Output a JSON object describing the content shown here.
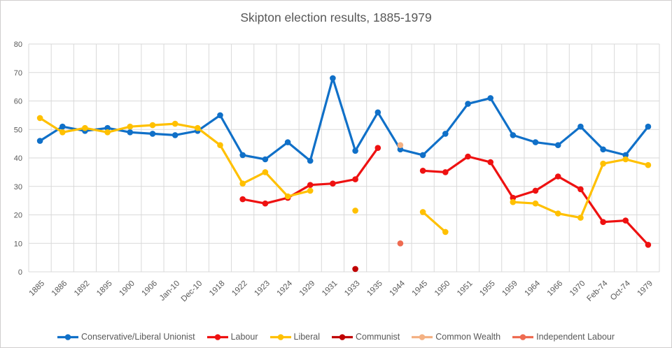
{
  "chart": {
    "title": "Skipton election results, 1885-1979",
    "background": "#ffffff",
    "grid_color": "#d9d9d9",
    "text_color": "#595959"
  },
  "chart_data": {
    "type": "line",
    "title": "Skipton election results, 1885-1979",
    "xlabel": "",
    "ylabel": "",
    "ylim": [
      0,
      80
    ],
    "yticks": [
      0,
      10,
      20,
      30,
      40,
      50,
      60,
      70,
      80
    ],
    "grid": true,
    "legend_position": "bottom",
    "categories": [
      "1885",
      "1886",
      "1892",
      "1895",
      "1900",
      "1906",
      "Jan-10",
      "Dec-10",
      "1918",
      "1922",
      "1923",
      "1924",
      "1929",
      "1931",
      "1933",
      "1935",
      "1944",
      "1945",
      "1950",
      "1951",
      "1955",
      "1959",
      "1964",
      "1966",
      "1970",
      "Feb-74",
      "Oct-74",
      "1979"
    ],
    "series": [
      {
        "name": "Conservative/Liberal Unionist",
        "color": "#1070c8",
        "values": [
          46,
          51,
          49.5,
          50.5,
          49,
          48.5,
          48,
          49.5,
          55,
          41,
          39.5,
          45.5,
          39,
          68,
          42.5,
          56,
          43,
          41,
          48.5,
          59,
          61,
          48,
          45.5,
          44.5,
          51,
          43,
          41,
          51
        ]
      },
      {
        "name": "Labour",
        "color": "#ee1111",
        "values": [
          null,
          null,
          null,
          null,
          null,
          null,
          null,
          null,
          null,
          25.5,
          24,
          26,
          30.5,
          31,
          32.5,
          43.5,
          null,
          35.5,
          35,
          40.5,
          38.5,
          26,
          28.5,
          33.5,
          29,
          17.5,
          18,
          9.5
        ]
      },
      {
        "name": "Liberal",
        "color": "#ffc000",
        "values": [
          54,
          49,
          50.5,
          49,
          51,
          51.5,
          52,
          50.5,
          44.5,
          31,
          35,
          26.5,
          28.5,
          null,
          21.5,
          null,
          null,
          21,
          14,
          null,
          null,
          24.5,
          24,
          20.5,
          19,
          38,
          39.5,
          37.5
        ]
      },
      {
        "name": "Communist",
        "color": "#c00000",
        "values": [
          null,
          null,
          null,
          null,
          null,
          null,
          null,
          null,
          null,
          null,
          null,
          null,
          null,
          null,
          1,
          null,
          null,
          null,
          null,
          null,
          null,
          null,
          null,
          null,
          null,
          null,
          null,
          null
        ]
      },
      {
        "name": "Common Wealth",
        "color": "#f4b183",
        "values": [
          null,
          null,
          null,
          null,
          null,
          null,
          null,
          null,
          null,
          null,
          null,
          null,
          null,
          null,
          null,
          null,
          44.5,
          null,
          null,
          null,
          null,
          null,
          null,
          null,
          null,
          null,
          null,
          null
        ]
      },
      {
        "name": "Independent Labour",
        "color": "#ee6b51",
        "values": [
          null,
          null,
          null,
          null,
          null,
          null,
          null,
          null,
          null,
          null,
          null,
          null,
          null,
          null,
          null,
          null,
          10,
          null,
          null,
          null,
          null,
          null,
          null,
          null,
          null,
          null,
          null,
          null
        ]
      }
    ]
  }
}
